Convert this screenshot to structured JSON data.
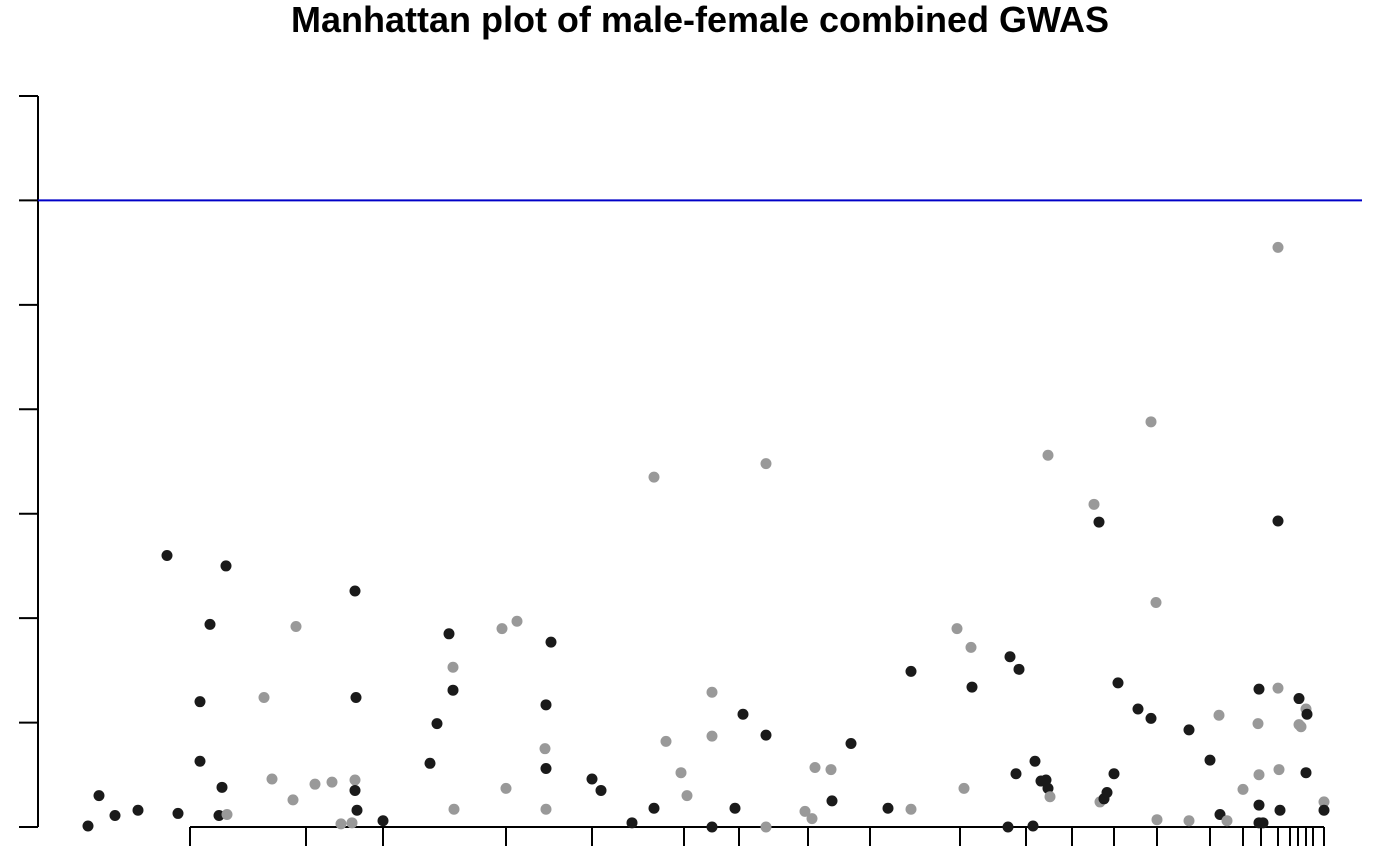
{
  "chart_data": {
    "type": "scatter",
    "title": "Manhattan plot of male-female combined GWAS",
    "xlabel": "",
    "ylabel": "",
    "ylim": [
      0,
      7
    ],
    "y_ticks": [
      0,
      1,
      2,
      3,
      4,
      5,
      6,
      7
    ],
    "threshold": 6,
    "colors": {
      "dark": "#1a1a1a",
      "light": "#999999",
      "threshold": "#0000c8",
      "axis": "#000000"
    },
    "grid": false,
    "legend": "none",
    "chromosome_boundaries": [
      190,
      306,
      383,
      506,
      592,
      684,
      739,
      808,
      870,
      960,
      1026,
      1072,
      1114,
      1157,
      1210,
      1243,
      1261,
      1278,
      1290,
      1298,
      1306,
      1313,
      1324
    ],
    "points": [
      {
        "x": 88,
        "y": 0.01,
        "c": "dark"
      },
      {
        "x": 99,
        "y": 0.3,
        "c": "dark"
      },
      {
        "x": 115,
        "y": 0.11,
        "c": "dark"
      },
      {
        "x": 138,
        "y": 0.16,
        "c": "dark"
      },
      {
        "x": 167,
        "y": 2.6,
        "c": "dark"
      },
      {
        "x": 178,
        "y": 0.13,
        "c": "dark"
      },
      {
        "x": 200,
        "y": 0.63,
        "c": "dark"
      },
      {
        "x": 200,
        "y": 1.2,
        "c": "dark"
      },
      {
        "x": 210,
        "y": 1.94,
        "c": "dark"
      },
      {
        "x": 219,
        "y": 0.11,
        "c": "dark"
      },
      {
        "x": 222,
        "y": 0.38,
        "c": "dark"
      },
      {
        "x": 226,
        "y": 2.5,
        "c": "dark"
      },
      {
        "x": 227,
        "y": 0.12,
        "c": "light"
      },
      {
        "x": 264,
        "y": 1.24,
        "c": "light"
      },
      {
        "x": 272,
        "y": 0.46,
        "c": "light"
      },
      {
        "x": 293,
        "y": 0.26,
        "c": "light"
      },
      {
        "x": 296,
        "y": 1.92,
        "c": "light"
      },
      {
        "x": 315,
        "y": 0.41,
        "c": "light"
      },
      {
        "x": 332,
        "y": 0.43,
        "c": "light"
      },
      {
        "x": 341,
        "y": 0.03,
        "c": "light"
      },
      {
        "x": 352,
        "y": 0.04,
        "c": "light"
      },
      {
        "x": 355,
        "y": 0.45,
        "c": "light"
      },
      {
        "x": 355,
        "y": 0.35,
        "c": "dark"
      },
      {
        "x": 355,
        "y": 2.26,
        "c": "dark"
      },
      {
        "x": 356,
        "y": 1.24,
        "c": "dark"
      },
      {
        "x": 357,
        "y": 0.16,
        "c": "dark"
      },
      {
        "x": 383,
        "y": 0.06,
        "c": "dark"
      },
      {
        "x": 430,
        "y": 0.61,
        "c": "dark"
      },
      {
        "x": 437,
        "y": 0.99,
        "c": "dark"
      },
      {
        "x": 449,
        "y": 1.85,
        "c": "dark"
      },
      {
        "x": 453,
        "y": 1.31,
        "c": "dark"
      },
      {
        "x": 453,
        "y": 1.53,
        "c": "light"
      },
      {
        "x": 454,
        "y": 0.17,
        "c": "light"
      },
      {
        "x": 502,
        "y": 1.9,
        "c": "light"
      },
      {
        "x": 506,
        "y": 0.37,
        "c": "light"
      },
      {
        "x": 517,
        "y": 1.97,
        "c": "light"
      },
      {
        "x": 545,
        "y": 0.75,
        "c": "light"
      },
      {
        "x": 546,
        "y": 1.17,
        "c": "dark"
      },
      {
        "x": 546,
        "y": 0.56,
        "c": "dark"
      },
      {
        "x": 546,
        "y": 0.17,
        "c": "light"
      },
      {
        "x": 551,
        "y": 1.77,
        "c": "dark"
      },
      {
        "x": 592,
        "y": 0.46,
        "c": "dark"
      },
      {
        "x": 601,
        "y": 0.35,
        "c": "dark"
      },
      {
        "x": 632,
        "y": 0.04,
        "c": "dark"
      },
      {
        "x": 654,
        "y": 0.18,
        "c": "dark"
      },
      {
        "x": 654,
        "y": 3.35,
        "c": "light"
      },
      {
        "x": 666,
        "y": 0.82,
        "c": "light"
      },
      {
        "x": 681,
        "y": 0.52,
        "c": "light"
      },
      {
        "x": 687,
        "y": 0.3,
        "c": "light"
      },
      {
        "x": 712,
        "y": 1.29,
        "c": "light"
      },
      {
        "x": 712,
        "y": 0.87,
        "c": "light"
      },
      {
        "x": 712,
        "y": 0.0,
        "c": "dark"
      },
      {
        "x": 735,
        "y": 0.18,
        "c": "dark"
      },
      {
        "x": 743,
        "y": 1.08,
        "c": "dark"
      },
      {
        "x": 766,
        "y": 3.48,
        "c": "light"
      },
      {
        "x": 766,
        "y": 0.88,
        "c": "dark"
      },
      {
        "x": 766,
        "y": 0.0,
        "c": "light"
      },
      {
        "x": 805,
        "y": 0.15,
        "c": "light"
      },
      {
        "x": 812,
        "y": 0.08,
        "c": "light"
      },
      {
        "x": 815,
        "y": 0.57,
        "c": "light"
      },
      {
        "x": 831,
        "y": 0.55,
        "c": "light"
      },
      {
        "x": 832,
        "y": 0.25,
        "c": "dark"
      },
      {
        "x": 851,
        "y": 0.8,
        "c": "dark"
      },
      {
        "x": 888,
        "y": 0.18,
        "c": "dark"
      },
      {
        "x": 911,
        "y": 1.49,
        "c": "dark"
      },
      {
        "x": 911,
        "y": 0.17,
        "c": "light"
      },
      {
        "x": 957,
        "y": 1.9,
        "c": "light"
      },
      {
        "x": 964,
        "y": 0.37,
        "c": "light"
      },
      {
        "x": 971,
        "y": 1.72,
        "c": "light"
      },
      {
        "x": 972,
        "y": 1.34,
        "c": "dark"
      },
      {
        "x": 1008,
        "y": 0.0,
        "c": "dark"
      },
      {
        "x": 1010,
        "y": 1.63,
        "c": "dark"
      },
      {
        "x": 1016,
        "y": 0.51,
        "c": "dark"
      },
      {
        "x": 1019,
        "y": 1.51,
        "c": "dark"
      },
      {
        "x": 1033,
        "y": 0.01,
        "c": "dark"
      },
      {
        "x": 1035,
        "y": 0.63,
        "c": "dark"
      },
      {
        "x": 1041,
        "y": 0.44,
        "c": "dark"
      },
      {
        "x": 1046,
        "y": 0.45,
        "c": "dark"
      },
      {
        "x": 1048,
        "y": 0.37,
        "c": "dark"
      },
      {
        "x": 1048,
        "y": 3.56,
        "c": "light"
      },
      {
        "x": 1050,
        "y": 0.29,
        "c": "light"
      },
      {
        "x": 1094,
        "y": 3.09,
        "c": "light"
      },
      {
        "x": 1099,
        "y": 2.92,
        "c": "dark"
      },
      {
        "x": 1100,
        "y": 0.24,
        "c": "light"
      },
      {
        "x": 1104,
        "y": 0.27,
        "c": "dark"
      },
      {
        "x": 1107,
        "y": 0.33,
        "c": "dark"
      },
      {
        "x": 1114,
        "y": 0.51,
        "c": "dark"
      },
      {
        "x": 1118,
        "y": 1.38,
        "c": "dark"
      },
      {
        "x": 1138,
        "y": 1.13,
        "c": "dark"
      },
      {
        "x": 1151,
        "y": 1.04,
        "c": "dark"
      },
      {
        "x": 1151,
        "y": 3.88,
        "c": "light"
      },
      {
        "x": 1156,
        "y": 2.15,
        "c": "light"
      },
      {
        "x": 1157,
        "y": 0.07,
        "c": "light"
      },
      {
        "x": 1189,
        "y": 0.06,
        "c": "light"
      },
      {
        "x": 1189,
        "y": 0.93,
        "c": "dark"
      },
      {
        "x": 1210,
        "y": 0.64,
        "c": "dark"
      },
      {
        "x": 1219,
        "y": 1.07,
        "c": "light"
      },
      {
        "x": 1220,
        "y": 0.12,
        "c": "dark"
      },
      {
        "x": 1227,
        "y": 0.06,
        "c": "light"
      },
      {
        "x": 1243,
        "y": 0.36,
        "c": "light"
      },
      {
        "x": 1258,
        "y": 0.99,
        "c": "light"
      },
      {
        "x": 1259,
        "y": 0.5,
        "c": "light"
      },
      {
        "x": 1259,
        "y": 1.32,
        "c": "dark"
      },
      {
        "x": 1259,
        "y": 0.21,
        "c": "dark"
      },
      {
        "x": 1259,
        "y": 0.04,
        "c": "dark"
      },
      {
        "x": 1263,
        "y": 0.04,
        "c": "dark"
      },
      {
        "x": 1278,
        "y": 5.55,
        "c": "light"
      },
      {
        "x": 1278,
        "y": 2.93,
        "c": "dark"
      },
      {
        "x": 1278,
        "y": 1.33,
        "c": "light"
      },
      {
        "x": 1279,
        "y": 0.55,
        "c": "light"
      },
      {
        "x": 1280,
        "y": 0.16,
        "c": "dark"
      },
      {
        "x": 1299,
        "y": 1.23,
        "c": "dark"
      },
      {
        "x": 1299,
        "y": 0.98,
        "c": "light"
      },
      {
        "x": 1301,
        "y": 0.96,
        "c": "light"
      },
      {
        "x": 1306,
        "y": 1.13,
        "c": "light"
      },
      {
        "x": 1307,
        "y": 1.08,
        "c": "dark"
      },
      {
        "x": 1306,
        "y": 0.52,
        "c": "dark"
      },
      {
        "x": 1324,
        "y": 0.24,
        "c": "light"
      },
      {
        "x": 1324,
        "y": 0.16,
        "c": "dark"
      }
    ]
  }
}
